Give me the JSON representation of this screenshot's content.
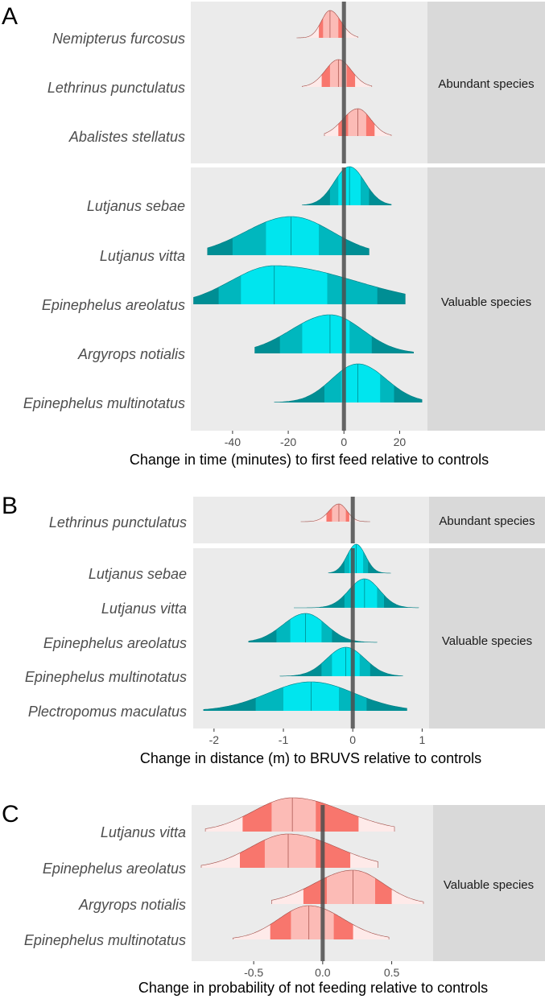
{
  "chart_data": [
    {
      "type": "ridgeline",
      "panel_label": "A",
      "xlabel": "Change in time (minutes) to first feed relative to controls",
      "x_ticks": [
        -40,
        -20,
        0,
        20
      ],
      "xlim": [
        -55,
        30
      ],
      "colors": {
        "abundant": "#f8766d",
        "valuable": "#00e5ee"
      },
      "groups": [
        {
          "name": "Abundant species",
          "color_key": "abundant",
          "series": [
            {
              "species": "Nemipterus furcosus",
              "median": -5,
              "ci50": [
                -7.5,
                -2
              ],
              "ci80": [
                -9,
                0
              ],
              "range": [
                -17,
                5
              ]
            },
            {
              "species": "Lethrinus punctulatus",
              "median": -2,
              "ci50": [
                -5,
                1
              ],
              "ci80": [
                -8,
                4
              ],
              "range": [
                -15,
                10
              ]
            },
            {
              "species": "Abalistes stellatus",
              "median": 5,
              "ci50": [
                1.5,
                8
              ],
              "ci80": [
                -2,
                11
              ],
              "range": [
                -7,
                17
              ]
            }
          ]
        },
        {
          "name": "Valuable species",
          "color_key": "valuable",
          "series": [
            {
              "species": "Lutjanus sebae",
              "median": 2,
              "ci50": [
                -2,
                6
              ],
              "ci80": [
                -5,
                9
              ],
              "range": [
                -15,
                17
              ]
            },
            {
              "species": "Lutjanus vitta",
              "median": -19,
              "ci50": [
                -28,
                -9
              ],
              "ci80": [
                -40,
                0
              ],
              "range": [
                -49,
                9
              ]
            },
            {
              "species": "Epinephelus areolatus",
              "median": -25,
              "ci50": [
                -37,
                -6
              ],
              "ci80": [
                -45,
                12
              ],
              "range": [
                -54,
                22
              ]
            },
            {
              "species": "Argyrops notialis",
              "median": -5,
              "ci50": [
                -15,
                2
              ],
              "ci80": [
                -23,
                10
              ],
              "range": [
                -32,
                25
              ]
            },
            {
              "species": "Epinephelus multinotatus",
              "median": 5,
              "ci50": [
                -1,
                13
              ],
              "ci80": [
                -7,
                18
              ],
              "range": [
                -25,
                28
              ]
            }
          ]
        }
      ]
    },
    {
      "type": "ridgeline",
      "panel_label": "B",
      "xlabel": "Change in distance (m) to BRUVS relative to controls",
      "x_ticks": [
        -2,
        -1,
        0,
        1
      ],
      "xlim": [
        -2.3,
        1.1
      ],
      "colors": {
        "abundant": "#f8766d",
        "valuable": "#00e5ee"
      },
      "groups": [
        {
          "name": "Abundant species",
          "color_key": "abundant",
          "series": [
            {
              "species": "Lethrinus punctulatus",
              "median": -0.2,
              "ci50": [
                -0.3,
                -0.1
              ],
              "ci80": [
                -0.38,
                -0.05
              ],
              "range": [
                -0.75,
                0.25
              ]
            }
          ]
        },
        {
          "name": "Valuable species",
          "color_key": "valuable",
          "series": [
            {
              "species": "Lutjanus sebae",
              "median": 0.05,
              "ci50": [
                -0.05,
                0.15
              ],
              "ci80": [
                -0.12,
                0.22
              ],
              "range": [
                -0.35,
                0.55
              ]
            },
            {
              "species": "Lutjanus vitta",
              "median": 0.17,
              "ci50": [
                0.0,
                0.35
              ],
              "ci80": [
                -0.12,
                0.45
              ],
              "range": [
                -0.85,
                0.95
              ]
            },
            {
              "species": "Epinephelus areolatus",
              "median": -0.68,
              "ci50": [
                -0.9,
                -0.45
              ],
              "ci80": [
                -1.1,
                -0.3
              ],
              "range": [
                -1.5,
                0.35
              ]
            },
            {
              "species": "Epinephelus multinotatus",
              "median": -0.1,
              "ci50": [
                -0.3,
                0.1
              ],
              "ci80": [
                -0.45,
                0.25
              ],
              "range": [
                -1.05,
                0.72
              ]
            },
            {
              "species": "Plectropomus maculatus",
              "median": -0.6,
              "ci50": [
                -1.0,
                -0.2
              ],
              "ci80": [
                -1.4,
                0.2
              ],
              "range": [
                -2.15,
                0.78
              ]
            }
          ]
        }
      ]
    },
    {
      "type": "ridgeline",
      "panel_label": "C",
      "xlabel": "Change in probability of not feeding relative to controls",
      "x_ticks": [
        -0.5,
        0.0,
        0.5
      ],
      "xlim": [
        -0.95,
        0.8
      ],
      "colors": {
        "valuable": "#f8766d"
      },
      "groups": [
        {
          "name": "Valuable species",
          "color_key": "valuable",
          "series": [
            {
              "species": "Lutjanus vitta",
              "median": -0.22,
              "ci50": [
                -0.37,
                -0.05
              ],
              "ci80": [
                -0.58,
                0.26
              ],
              "range": [
                -0.85,
                0.52
              ]
            },
            {
              "species": "Epinephelus areolatus",
              "median": -0.25,
              "ci50": [
                -0.42,
                -0.05
              ],
              "ci80": [
                -0.6,
                0.2
              ],
              "range": [
                -0.88,
                0.4
              ]
            },
            {
              "species": "Argyrops notialis",
              "median": 0.22,
              "ci50": [
                0.03,
                0.38
              ],
              "ci80": [
                -0.14,
                0.5
              ],
              "range": [
                -0.37,
                0.73
              ]
            },
            {
              "species": "Epinephelus multinotatus",
              "median": -0.1,
              "ci50": [
                -0.23,
                0.08
              ],
              "ci80": [
                -0.38,
                0.22
              ],
              "range": [
                -0.65,
                0.48
              ]
            }
          ]
        }
      ]
    }
  ]
}
